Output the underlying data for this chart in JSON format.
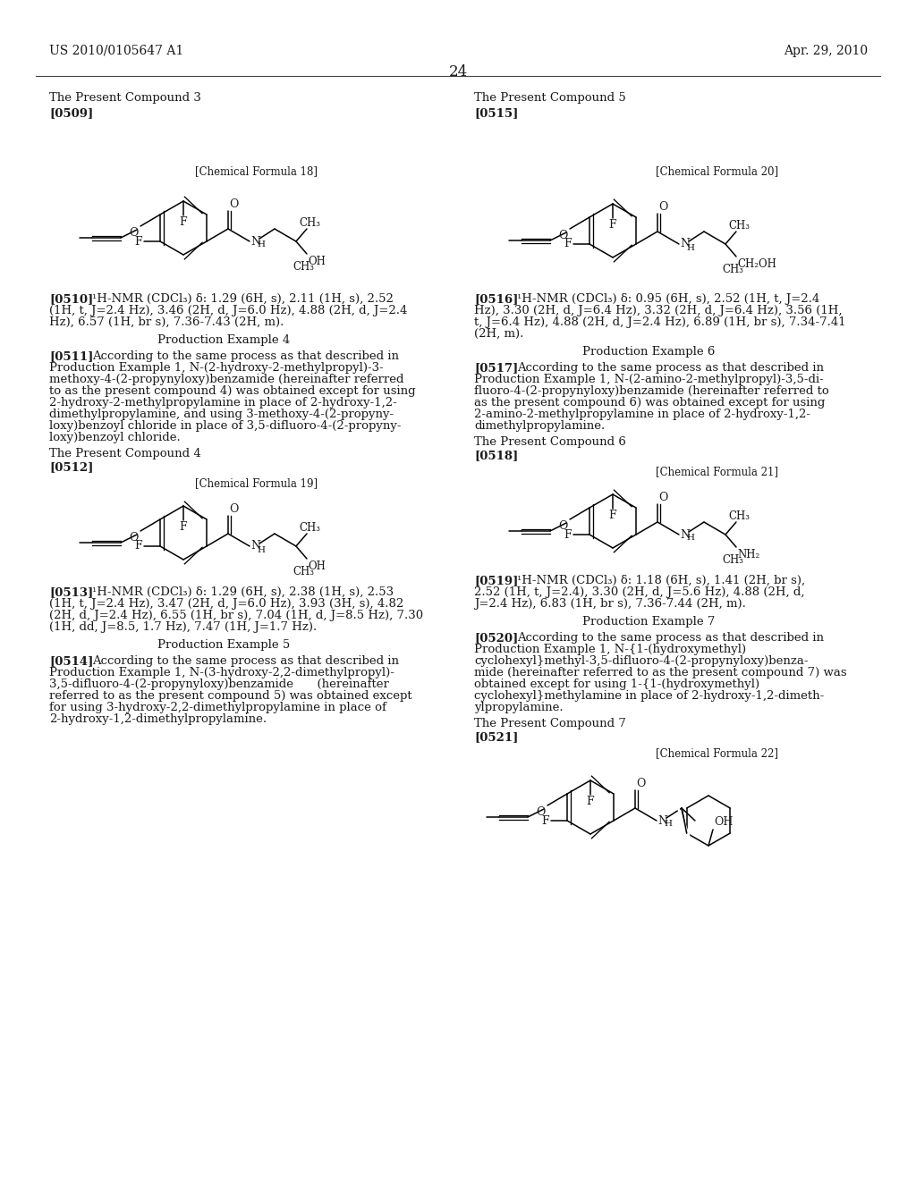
{
  "page_header_left": "US 2010/0105647 A1",
  "page_header_right": "Apr. 29, 2010",
  "page_number": "24",
  "background_color": "#ffffff",
  "text_color": "#1a1a1a"
}
